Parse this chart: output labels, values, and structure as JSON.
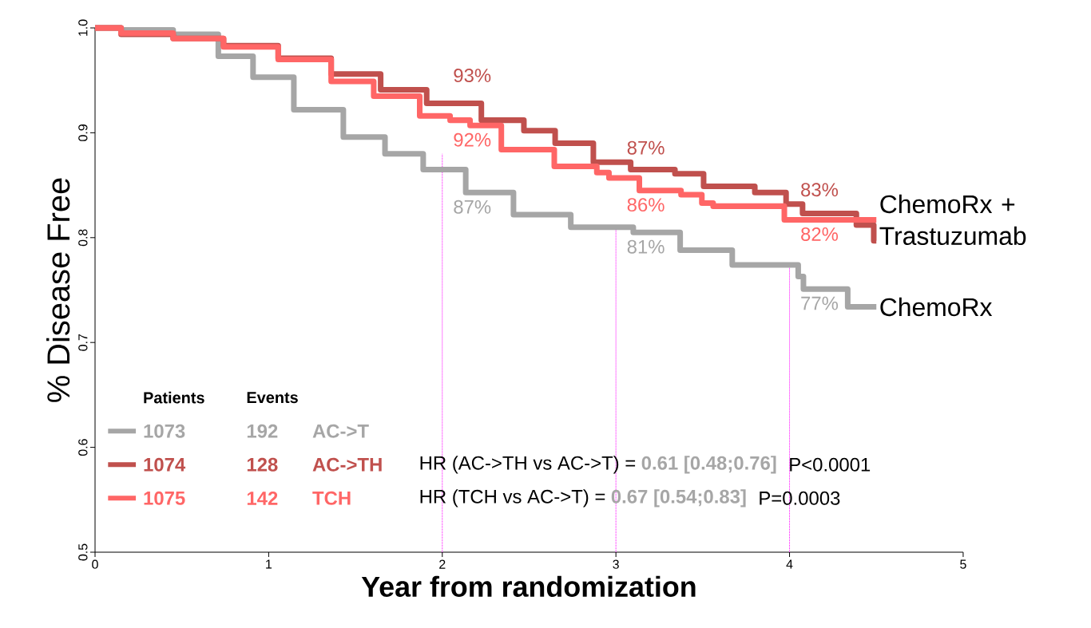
{
  "chart_data": {
    "type": "step",
    "xlabel": "Year from randomization",
    "ylabel": "% Disease Free",
    "xlim": [
      0,
      5
    ],
    "ylim": [
      0.5,
      1.0
    ],
    "xticks": [
      0,
      1,
      2,
      3,
      4,
      5
    ],
    "yticks": [
      0.5,
      0.6,
      0.7,
      0.8,
      0.9,
      {
        "value": 1.0,
        "label": "1.0"
      }
    ],
    "series": [
      {
        "name": "AC->T",
        "color": "#a6a6a6",
        "x": [
          0,
          0.3,
          0.6,
          0.82,
          1.0,
          1.29,
          1.57,
          1.77,
          2.01,
          2.26,
          2.56,
          2.92,
          3.28,
          3.46,
          3.63,
          3.71,
          4.04,
          4.06,
          4.1,
          4.33,
          4.34,
          4.5
        ],
        "values": [
          1,
          0.998,
          0.994,
          0.973,
          0.953,
          0.922,
          0.896,
          0.88,
          0.865,
          0.843,
          0.822,
          0.81,
          0.805,
          0.788,
          0.788,
          0.774,
          0.774,
          0.763,
          0.751,
          0.751,
          0.734,
          0.734
        ]
      },
      {
        "name": "AC->TH",
        "color": "#c0504d",
        "x": [
          0,
          0.3,
          0.6,
          0.88,
          1.23,
          1.49,
          1.8,
          2.02,
          2.43,
          2.51,
          2.79,
          2.95,
          3.22,
          3.46,
          3.55,
          3.79,
          3.81,
          3.97,
          3.99,
          4.07,
          4.08,
          4.38,
          4.39,
          4.48,
          4.49,
          4.5
        ],
        "values": [
          1,
          0.994,
          0.99,
          0.983,
          0.971,
          0.956,
          0.941,
          0.928,
          0.912,
          0.902,
          0.89,
          0.872,
          0.865,
          0.861,
          0.849,
          0.849,
          0.843,
          0.843,
          0.832,
          0.832,
          0.823,
          0.823,
          0.812,
          0.812,
          0.797,
          0.797
        ]
      },
      {
        "name": "TCH",
        "color": "#ff6666",
        "x": [
          0,
          0.3,
          0.6,
          0.88,
          1.23,
          1.49,
          1.72,
          2.02,
          2.07,
          2.25,
          2.43,
          2.86,
          2.92,
          3.0,
          3.27,
          3.48,
          3.51,
          3.61,
          3.96,
          3.98,
          4.5
        ],
        "values": [
          1,
          0.995,
          0.99,
          0.982,
          0.97,
          0.949,
          0.935,
          0.916,
          0.912,
          0.907,
          0.884,
          0.868,
          0.862,
          0.857,
          0.845,
          0.841,
          0.833,
          0.83,
          0.83,
          0.817,
          0.817
        ]
      }
    ],
    "ref_lines": [
      {
        "axis": "x",
        "value": 2,
        "color": "#ff00ff",
        "line_style": "dotted"
      },
      {
        "axis": "x",
        "value": 3,
        "color": "#ff00ff",
        "line_style": "dotted"
      },
      {
        "axis": "x",
        "value": 4,
        "color": "#ff00ff",
        "line_style": "dotted"
      }
    ],
    "annotations": [
      "Patients",
      "Events",
      "1073",
      "192",
      "1074",
      "128",
      "1075",
      "142",
      "HR (AC->TH vs AC->T) =",
      "0.61 [0.48;0.76]",
      "P<0.0001",
      "HR (TCH vs AC->T) =",
      "0.67 [0.54;0.83]",
      "P=0.0003",
      {
        "text": "93%",
        "x": 2,
        "y": 0.93
      },
      {
        "text": "92%",
        "x": 2,
        "y": 0.92
      },
      {
        "text": "87%",
        "x": 2,
        "y": 0.87
      },
      {
        "text": "87%",
        "x": 3,
        "y": 0.87
      },
      {
        "text": "86%",
        "x": 3,
        "y": 0.86
      },
      {
        "text": "81%",
        "x": 3,
        "y": 0.81
      },
      {
        "text": "83%",
        "x": 4,
        "y": 0.83
      },
      {
        "text": "82%",
        "x": 4,
        "y": 0.82
      },
      {
        "text": "77%",
        "x": 4,
        "y": 0.77
      },
      {
        "text": "ChemoRx + Trastuzumab",
        "x": 4.5,
        "y": 0.817
      },
      {
        "text": "ChemoRx",
        "x": 4.5,
        "y": 0.734
      }
    ],
    "legend": "bottom left",
    "marker": "none",
    "line_style": "solid",
    "grid": false
  }
}
